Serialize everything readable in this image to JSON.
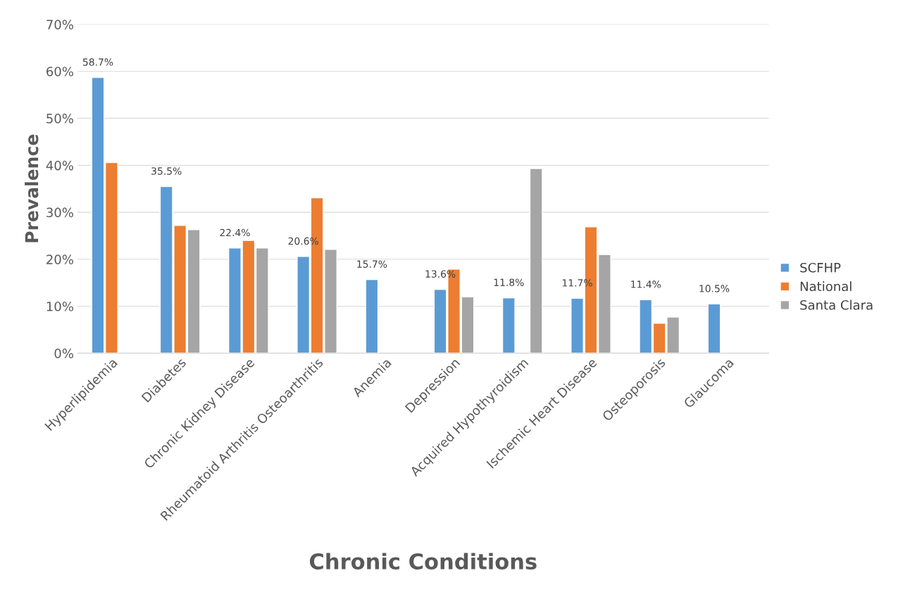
{
  "chart_data": {
    "type": "bar",
    "xlabel": "Chronic Conditions",
    "ylabel": "Prevalence",
    "categories": [
      "Hyperlipidemia",
      "Diabetes",
      "Chronic Kidney Disease",
      "Rheumatoid Arthritis Osteoarthritis",
      "Anemia",
      "Depression",
      "Acquired Hypothyroidism",
      "Ischemic Heart Disease",
      "Osteoporosis",
      "Glaucoma"
    ],
    "series": [
      {
        "name": "SCFHP",
        "color": "#5b9bd5",
        "values": [
          58.7,
          35.5,
          22.4,
          20.6,
          15.7,
          13.6,
          11.8,
          11.7,
          11.4,
          10.5
        ],
        "value_labels": [
          "58.7%",
          "35.5%",
          "22.4%",
          "20.6%",
          "15.7%",
          "13.6%",
          "11.8%",
          "11.7%",
          "11.4%",
          "10.5%"
        ]
      },
      {
        "name": "National",
        "color": "#ed7d31",
        "values": [
          40.6,
          27.2,
          24.0,
          33.1,
          null,
          17.9,
          null,
          26.9,
          6.4,
          null
        ]
      },
      {
        "name": "Santa Clara",
        "color": "#a5a5a5",
        "values": [
          null,
          26.3,
          22.4,
          22.1,
          null,
          12.0,
          39.3,
          21.0,
          7.7,
          null
        ]
      }
    ],
    "ylim": [
      0,
      70
    ],
    "yticks": [
      {
        "value": 0,
        "label": "0%"
      },
      {
        "value": 10,
        "label": "10%"
      },
      {
        "value": 20,
        "label": "20%"
      },
      {
        "value": 30,
        "label": "30%"
      },
      {
        "value": 40,
        "label": "40%"
      },
      {
        "value": 50,
        "label": "50%"
      },
      {
        "value": 60,
        "label": "60%"
      },
      {
        "value": 70,
        "label": "70%"
      }
    ],
    "grid": "y",
    "legend": "right"
  }
}
